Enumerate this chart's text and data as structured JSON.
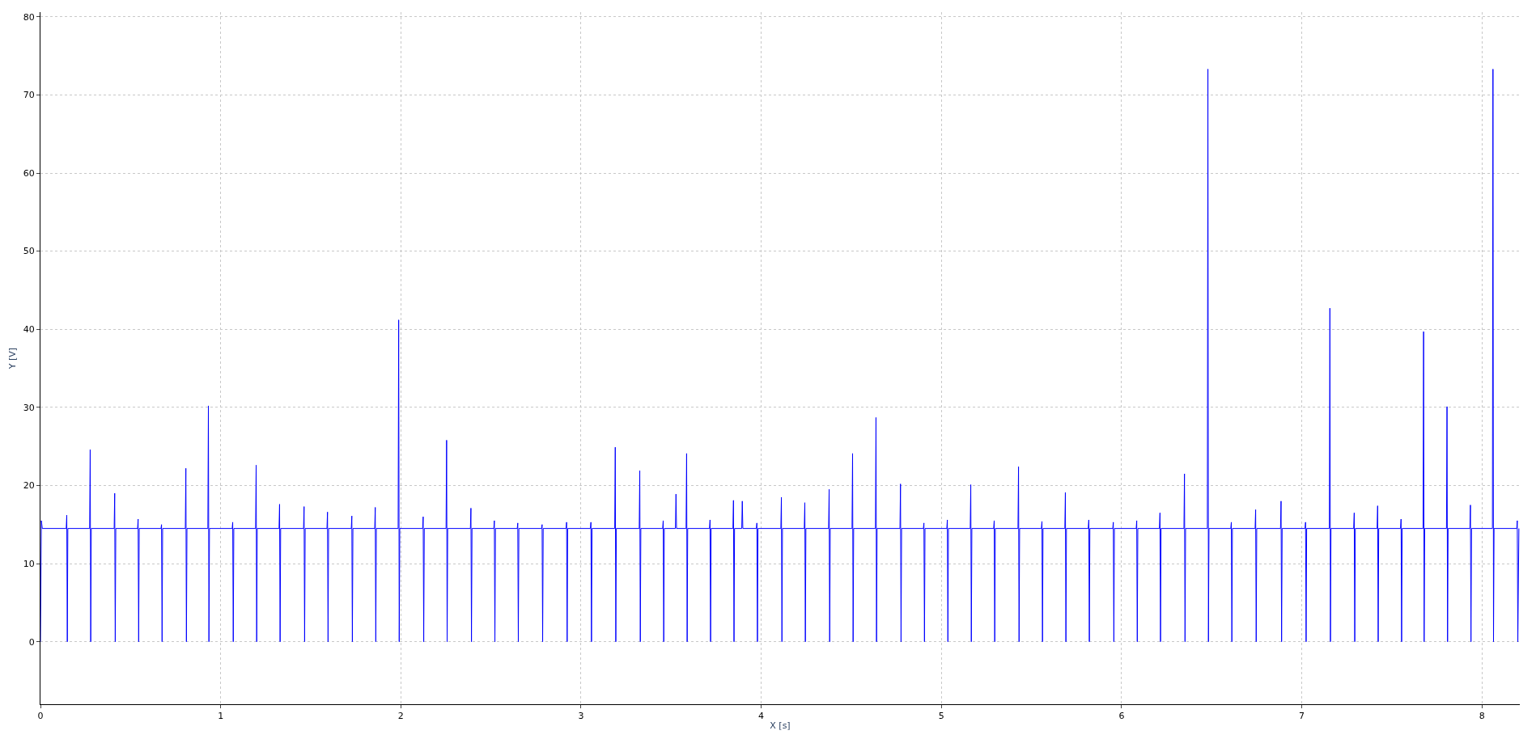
{
  "chart_data": {
    "type": "line",
    "xlabel": "X [s]",
    "ylabel": "Y [V]",
    "xlim": [
      0,
      8.21
    ],
    "ylim": [
      -8,
      80.6
    ],
    "xticks": [
      0,
      1,
      2,
      3,
      4,
      5,
      6,
      7,
      8
    ],
    "yticks": [
      0,
      10,
      20,
      30,
      40,
      50,
      60,
      70,
      80
    ],
    "grid": true,
    "marker": "none",
    "line_style": "solid",
    "series": [
      {
        "color": "#0000ff",
        "x": [
          0,
          0.005,
          0.01,
          0.143,
          0.146,
          0.149,
          0.152,
          0.273,
          0.276,
          0.279,
          0.282,
          0.409,
          0.412,
          0.415,
          0.418,
          0.539,
          0.542,
          0.545,
          0.548,
          0.669,
          0.672,
          0.675,
          0.678,
          0.804,
          0.807,
          0.81,
          0.813,
          0.929,
          0.932,
          0.935,
          0.938,
          1.064,
          1.067,
          1.07,
          1.073,
          1.194,
          1.197,
          1.2,
          1.203,
          1.324,
          1.327,
          1.33,
          1.333,
          1.46,
          1.463,
          1.466,
          1.469,
          1.59,
          1.593,
          1.596,
          1.599,
          1.725,
          1.728,
          1.731,
          1.734,
          1.855,
          1.858,
          1.861,
          1.864,
          1.985,
          1.988,
          1.991,
          1.994,
          2.121,
          2.124,
          2.127,
          2.13,
          2.251,
          2.254,
          2.257,
          2.26,
          2.386,
          2.389,
          2.392,
          2.395,
          2.516,
          2.519,
          2.522,
          2.525,
          2.646,
          2.649,
          2.652,
          2.655,
          2.781,
          2.784,
          2.787,
          2.79,
          2.917,
          2.92,
          2.923,
          2.926,
          3.052,
          3.055,
          3.058,
          3.061,
          3.187,
          3.19,
          3.193,
          3.196,
          3.323,
          3.326,
          3.329,
          3.332,
          3.453,
          3.456,
          3.459,
          3.462,
          3.524,
          3.527,
          3.53,
          3.583,
          3.586,
          3.589,
          3.592,
          3.713,
          3.716,
          3.719,
          3.722,
          3.843,
          3.846,
          3.849,
          3.852,
          3.892,
          3.895,
          3.898,
          3.973,
          3.976,
          3.979,
          3.982,
          4.109,
          4.112,
          4.115,
          4.118,
          4.239,
          4.242,
          4.245,
          4.248,
          4.374,
          4.377,
          4.38,
          4.383,
          4.504,
          4.507,
          4.51,
          4.513,
          4.634,
          4.637,
          4.64,
          4.643,
          4.77,
          4.773,
          4.776,
          4.779,
          4.9,
          4.903,
          4.906,
          4.909,
          5.03,
          5.033,
          5.036,
          5.039,
          5.16,
          5.163,
          5.166,
          5.169,
          5.29,
          5.293,
          5.296,
          5.299,
          5.425,
          5.428,
          5.431,
          5.434,
          5.555,
          5.558,
          5.561,
          5.564,
          5.685,
          5.688,
          5.691,
          5.694,
          5.815,
          5.818,
          5.821,
          5.824,
          5.951,
          5.954,
          5.957,
          5.96,
          6.081,
          6.084,
          6.087,
          6.09,
          6.21,
          6.213,
          6.216,
          6.219,
          6.346,
          6.349,
          6.352,
          6.355,
          6.476,
          6.479,
          6.482,
          6.485,
          6.606,
          6.609,
          6.612,
          6.615,
          6.741,
          6.744,
          6.747,
          6.75,
          6.882,
          6.885,
          6.888,
          6.891,
          7.018,
          7.021,
          7.024,
          7.027,
          7.153,
          7.156,
          7.159,
          7.162,
          7.288,
          7.291,
          7.294,
          7.297,
          7.418,
          7.421,
          7.424,
          7.427,
          7.548,
          7.551,
          7.554,
          7.557,
          7.673,
          7.676,
          7.679,
          7.682,
          7.803,
          7.806,
          7.809,
          7.812,
          7.933,
          7.936,
          7.939,
          7.942,
          8.058,
          8.061,
          8.064,
          8.067,
          8.193,
          8.196,
          8.199,
          8.205
        ],
        "values": [
          0,
          15.5,
          14.5,
          14.5,
          16.2,
          0,
          14.5,
          14.5,
          24.6,
          0,
          14.5,
          14.5,
          19,
          0,
          14.5,
          14.5,
          15.7,
          0,
          14.5,
          14.5,
          15,
          0,
          14.5,
          14.5,
          22.2,
          0,
          14.5,
          14.5,
          30.2,
          0,
          14.5,
          14.5,
          15.3,
          0,
          14.5,
          14.5,
          22.6,
          0,
          14.5,
          14.5,
          17.6,
          0,
          14.5,
          14.5,
          17.3,
          0,
          14.5,
          14.5,
          16.6,
          0,
          14.5,
          14.5,
          16.1,
          0,
          14.5,
          14.5,
          17.2,
          0,
          14.5,
          14.5,
          41.2,
          0,
          14.5,
          14.5,
          16,
          0,
          14.5,
          14.5,
          25.8,
          0,
          14.5,
          14.5,
          17.1,
          0,
          14.5,
          14.5,
          15.5,
          0,
          14.5,
          14.5,
          15.2,
          0,
          14.5,
          14.5,
          15,
          0,
          14.5,
          14.5,
          15.3,
          0,
          14.5,
          14.5,
          15.3,
          0,
          14.5,
          14.5,
          24.9,
          0,
          14.5,
          14.5,
          21.9,
          0,
          14.5,
          14.5,
          15.5,
          0,
          14.5,
          14.5,
          18.9,
          14.5,
          14.5,
          24.1,
          0,
          14.5,
          14.5,
          15.6,
          0,
          14.5,
          14.5,
          18.1,
          0,
          14.5,
          14.5,
          18,
          14.5,
          14.5,
          15.2,
          0,
          14.5,
          14.5,
          18.5,
          0,
          14.5,
          14.5,
          17.8,
          0,
          14.5,
          14.5,
          19.5,
          0,
          14.5,
          14.5,
          24.1,
          0,
          14.5,
          14.5,
          28.7,
          0,
          14.5,
          14.5,
          20.2,
          0,
          14.5,
          14.5,
          15.2,
          0,
          14.5,
          14.5,
          15.6,
          0,
          14.5,
          14.5,
          20.1,
          0,
          14.5,
          14.5,
          15.5,
          0,
          14.5,
          14.5,
          22.4,
          0,
          14.5,
          14.5,
          15.4,
          0,
          14.5,
          14.5,
          19.1,
          0,
          14.5,
          14.5,
          15.6,
          0,
          14.5,
          14.5,
          15.3,
          0,
          14.5,
          14.5,
          15.5,
          0,
          14.5,
          14.5,
          16.5,
          0,
          14.5,
          14.5,
          21.5,
          0,
          14.5,
          14.5,
          73.3,
          0,
          14.5,
          14.5,
          15.3,
          0,
          14.5,
          14.5,
          16.9,
          0,
          14.5,
          14.5,
          18,
          0,
          14.5,
          14.5,
          15.3,
          0,
          14.5,
          14.5,
          42.7,
          0,
          14.5,
          14.5,
          16.5,
          0,
          14.5,
          14.5,
          17.4,
          0,
          14.5,
          14.5,
          15.7,
          0,
          14.5,
          14.5,
          39.7,
          0,
          14.5,
          14.5,
          30.1,
          0,
          14.5,
          14.5,
          17.5,
          0,
          14.5,
          14.5,
          73.3,
          0,
          14.5,
          14.5,
          15.5,
          0,
          14.5
        ]
      }
    ]
  }
}
